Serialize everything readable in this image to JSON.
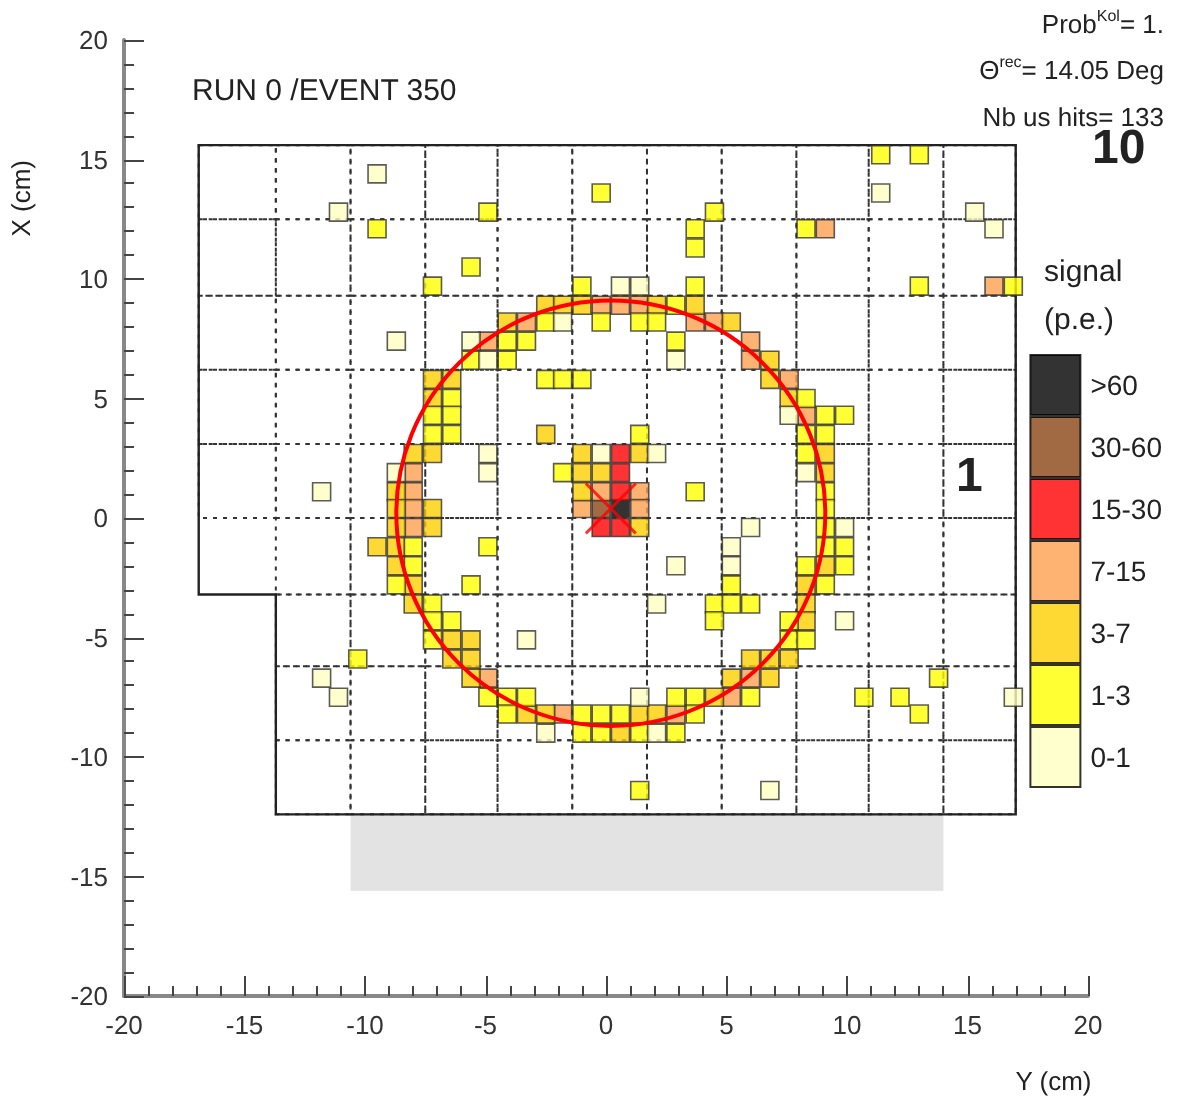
{
  "chart_data": {
    "type": "scatter",
    "annotations": [
      "RUN 0 /EVENT 350",
      "Prob$^{Kol}$= 1.",
      "Θ$^{rec}$= 14.05 Deg",
      "Nb us hits= 133",
      "10",
      "1"
    ],
    "xlabel": "Y (cm)",
    "ylabel": "X (cm)",
    "legend_title": "signal\n(p.e.)",
    "xlim": [
      -20,
      20
    ],
    "ylim": [
      -20,
      20
    ],
    "xticks": [
      -20,
      -15,
      -10,
      -5,
      0,
      5,
      10,
      15,
      20
    ],
    "yticks": [
      -20,
      -15,
      -10,
      -5,
      0,
      5,
      10,
      15,
      20
    ],
    "grid": false,
    "legend": "right",
    "marker": "square",
    "series": [
      {
        "name": ">60",
        "color": "#000000",
        "x": [
          0.6
        ],
        "values": [
          0.4
        ]
      },
      {
        "name": "30-60",
        "color": "#8b4513",
        "x": [
          -0.2
        ],
        "values": [
          0.4
        ]
      },
      {
        "name": "15-30",
        "color": "#ff0000",
        "x": [
          0.6,
          0.6,
          0.6,
          -0.2,
          0.6
        ],
        "values": [
          2.7,
          1.9,
          1.1,
          -0.4,
          -0.4
        ]
      },
      {
        "name": "7-15",
        "color": "#ffa050",
        "x": [
          -0.2,
          0.6,
          1.4,
          -3.3,
          3.7,
          4.5,
          -4.9,
          6.0,
          6.0,
          7.6,
          9.1,
          16.1,
          8.3,
          -8.0,
          -8.0,
          -8.0,
          -8.0,
          -0.2,
          1.4,
          -1.0,
          1.4,
          -4.9,
          6.0,
          5.2,
          -1.8,
          2.9
        ],
        "values": [
          8.9,
          8.9,
          8.9,
          8.2,
          8.2,
          8.2,
          7.4,
          7.4,
          6.6,
          5.8,
          12.1,
          9.7,
          4.3,
          1.9,
          1.1,
          0.4,
          -0.4,
          1.1,
          1.1,
          0.4,
          0.4,
          -6.7,
          -6.7,
          -7.5,
          -8.2,
          -8.2
        ]
      },
      {
        "name": "3-7",
        "color": "#ffd000",
        "x": [
          -2.5,
          -1.8,
          -1.0,
          2.1,
          3.7,
          -4.1,
          5.2,
          6.8,
          -7.2,
          -6.4,
          -7.2,
          -2.5,
          -1.0,
          1.4,
          6.8,
          7.6,
          9.1,
          -8.7,
          -8.7,
          -7.2,
          -8.7,
          -7.2,
          -9.5,
          -8.7,
          -8.7,
          -8.0,
          -8.0,
          -8.0,
          -7.2,
          -1.0,
          -0.2,
          -1.0,
          1.4,
          -6.4,
          -5.6,
          -6.4,
          -5.6,
          6.0,
          6.8,
          -5.6,
          5.2,
          6.8,
          4.5,
          -3.3,
          -2.5,
          1.4,
          2.1,
          0.6,
          9.1,
          9.1,
          8.3,
          8.3,
          8.3,
          7.6
        ],
        "values": [
          8.9,
          8.9,
          8.9,
          8.9,
          8.9,
          8.2,
          8.2,
          6.6,
          5.8,
          5.8,
          5.0,
          3.5,
          2.7,
          2.7,
          5.8,
          5.0,
          2.7,
          1.1,
          0.4,
          0.4,
          -0.4,
          -0.4,
          -1.2,
          -1.2,
          -2.0,
          -2.8,
          -3.6,
          2.7,
          2.7,
          1.9,
          1.9,
          1.1,
          -0.4,
          -5.1,
          -5.1,
          -5.9,
          -5.9,
          -5.9,
          -5.9,
          -6.7,
          -6.7,
          -6.7,
          -7.5,
          -8.2,
          -8.2,
          -8.2,
          -8.2,
          -9.0,
          1.9,
          -2.0,
          -2.8,
          -3.6,
          -4.3,
          -5.9
        ]
      },
      {
        "name": "1-3",
        "color": "#ffff00",
        "x": [
          -9.5,
          -7.2,
          -0.2,
          -4.9,
          4.5,
          3.7,
          3.7,
          -5.6,
          -1.0,
          3.7,
          2.9,
          -2.5,
          -0.2,
          1.4,
          2.1,
          -4.1,
          -3.3,
          2.9,
          -5.6,
          -4.1,
          -2.5,
          -1.8,
          -1.0,
          -6.4,
          -7.2,
          -6.4,
          -7.2,
          -6.4,
          1.4,
          11.4,
          13.0,
          8.3,
          13.0,
          16.9,
          8.3,
          9.1,
          9.9,
          8.3,
          9.1,
          8.3,
          -8.0,
          -8.0,
          -8.7,
          -7.2,
          -7.2,
          -7.2,
          -10.3,
          -1.8,
          3.7,
          -4.9,
          -5.6,
          5.2,
          4.5,
          5.2,
          6.0,
          -6.4,
          4.5,
          -4.9,
          -4.1,
          -3.3,
          2.9,
          3.7,
          6.0,
          -4.1,
          -1.0,
          -0.2,
          0.6,
          3.7,
          -1.0,
          -0.2,
          1.4,
          2.9,
          1.4,
          9.1,
          9.1,
          9.1,
          9.1,
          9.9,
          8.3,
          9.9,
          9.1,
          7.6,
          7.6,
          8.3,
          13.8,
          10.7,
          12.2,
          13.0
        ],
        "values": [
          12.1,
          9.7,
          13.6,
          12.8,
          12.8,
          12.1,
          11.3,
          10.5,
          9.7,
          9.7,
          8.9,
          8.2,
          8.2,
          8.2,
          8.2,
          7.4,
          7.4,
          7.4,
          6.6,
          6.6,
          5.8,
          5.8,
          5.8,
          5.0,
          4.3,
          4.3,
          3.5,
          3.5,
          3.5,
          15.2,
          15.2,
          12.1,
          9.7,
          9.7,
          5.0,
          4.3,
          4.3,
          3.5,
          3.5,
          2.7,
          -1.2,
          -2.0,
          -2.8,
          -3.6,
          -4.3,
          -5.1,
          -5.9,
          1.9,
          1.1,
          -1.2,
          -2.8,
          -2.8,
          -3.6,
          -3.6,
          -3.6,
          -4.3,
          -4.3,
          -7.5,
          -7.5,
          -7.5,
          -7.5,
          -7.5,
          -7.5,
          -8.2,
          -8.2,
          -8.2,
          -8.2,
          -8.2,
          -9.0,
          -9.0,
          -9.0,
          -9.0,
          -11.4,
          1.1,
          0.4,
          -0.4,
          -1.2,
          -1.2,
          -2.0,
          -2.0,
          -2.8,
          -4.3,
          -5.1,
          -5.1,
          -6.7,
          -7.5,
          -7.5,
          -8.2
        ]
      },
      {
        "name": "0-1",
        "color": "#ffffc0",
        "x": [
          -9.5,
          -11.1,
          -8.7,
          0.6,
          1.4,
          -1.8,
          -5.6,
          -4.9,
          2.9,
          -4.9,
          -0.2,
          2.1,
          11.4,
          15.3,
          16.1,
          7.6,
          -11.8,
          -8.7,
          -11.8,
          -11.1,
          -4.9,
          6.0,
          5.2,
          2.9,
          5.2,
          2.1,
          -3.3,
          1.4,
          -2.5,
          2.1,
          6.8,
          8.3,
          9.9,
          9.9,
          16.9
        ],
        "values": [
          14.4,
          12.8,
          7.4,
          9.7,
          9.7,
          8.2,
          7.4,
          6.6,
          6.6,
          2.7,
          2.7,
          2.7,
          13.6,
          12.8,
          12.1,
          4.3,
          1.1,
          1.9,
          -6.7,
          -7.5,
          1.9,
          -0.4,
          -1.2,
          -2.0,
          -2.0,
          -3.6,
          -5.1,
          -7.5,
          -9.0,
          -9.0,
          -11.4,
          1.9,
          -0.4,
          -4.3,
          -7.5
        ]
      },
      {
        "type": "scatter",
        "marker": "cross",
        "color": "#ff0000",
        "x": [
          0.2
        ],
        "values": [
          0.4
        ]
      }
    ]
  }
}
